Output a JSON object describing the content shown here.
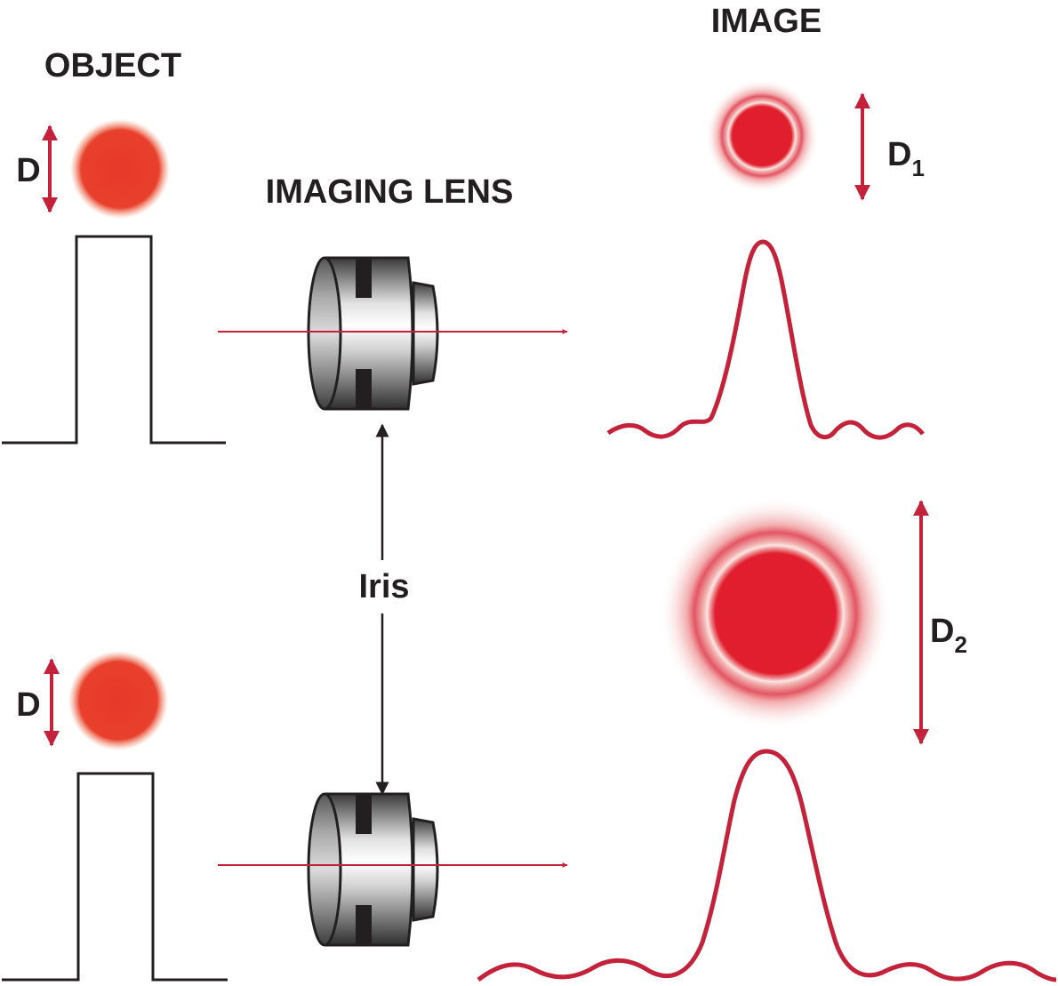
{
  "labels": {
    "object": "OBJECT",
    "image": "IMAGE",
    "imaging_lens": "IMAGING LENS",
    "iris": "Iris",
    "d_top": "D",
    "d_bottom": "D",
    "d1_main": "D",
    "d1_sub": "1",
    "d2_main": "D",
    "d2_sub": "2"
  },
  "colors": {
    "accent_red": "#c4223a",
    "object_spot": "#e8382a",
    "image_spot": "#e01e2d",
    "ink": "#231f20"
  }
}
